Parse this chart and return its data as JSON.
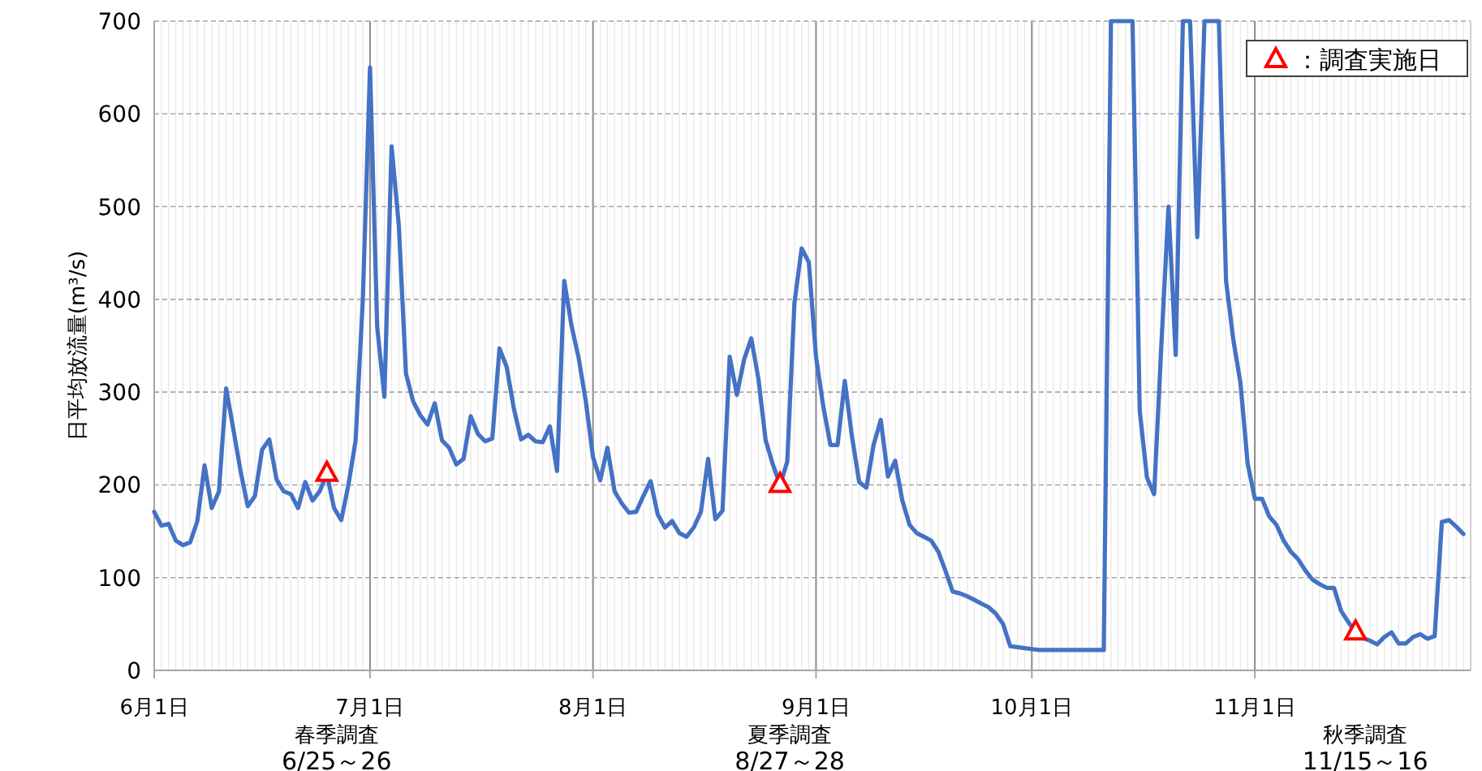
{
  "chart_data": {
    "type": "line",
    "ylabel": "日平均放流量(m³/s)",
    "x": [
      "--06-01",
      "--06-02",
      "--06-03",
      "--06-04",
      "--06-05",
      "--06-06",
      "--06-07",
      "--06-08",
      "--06-09",
      "--06-10",
      "--06-11",
      "--06-12",
      "--06-13",
      "--06-14",
      "--06-15",
      "--06-16",
      "--06-17",
      "--06-18",
      "--06-19",
      "--06-20",
      "--06-21",
      "--06-22",
      "--06-23",
      "--06-24",
      "--06-25",
      "--06-26",
      "--06-27",
      "--06-28",
      "--06-29",
      "--06-30",
      "--07-01",
      "--07-02",
      "--07-03",
      "--07-04",
      "--07-05",
      "--07-06",
      "--07-07",
      "--07-08",
      "--07-09",
      "--07-10",
      "--07-11",
      "--07-12",
      "--07-13",
      "--07-14",
      "--07-15",
      "--07-16",
      "--07-17",
      "--07-18",
      "--07-19",
      "--07-20",
      "--07-21",
      "--07-22",
      "--07-23",
      "--07-24",
      "--07-25",
      "--07-26",
      "--07-27",
      "--07-28",
      "--07-29",
      "--07-30",
      "--07-31",
      "--08-01",
      "--08-02",
      "--08-03",
      "--08-04",
      "--08-05",
      "--08-06",
      "--08-07",
      "--08-08",
      "--08-09",
      "--08-10",
      "--08-11",
      "--08-12",
      "--08-13",
      "--08-14",
      "--08-15",
      "--08-16",
      "--08-17",
      "--08-18",
      "--08-19",
      "--08-20",
      "--08-21",
      "--08-22",
      "--08-23",
      "--08-24",
      "--08-25",
      "--08-26",
      "--08-27",
      "--08-28",
      "--08-29",
      "--08-30",
      "--08-31",
      "--09-01",
      "--09-02",
      "--09-03",
      "--09-04",
      "--09-05",
      "--09-06",
      "--09-07",
      "--09-08",
      "--09-09",
      "--09-10",
      "--09-11",
      "--09-12",
      "--09-13",
      "--09-14",
      "--09-15",
      "--09-16",
      "--09-17",
      "--09-18",
      "--09-19",
      "--09-20",
      "--09-21",
      "--09-22",
      "--09-23",
      "--09-24",
      "--09-25",
      "--09-26",
      "--09-27",
      "--09-28",
      "--09-29",
      "--09-30",
      "--10-01",
      "--10-02",
      "--10-03",
      "--10-04",
      "--10-05",
      "--10-06",
      "--10-07",
      "--10-08",
      "--10-09",
      "--10-10",
      "--10-11",
      "--10-12",
      "--10-13",
      "--10-14",
      "--10-15",
      "--10-16",
      "--10-17",
      "--10-18",
      "--10-19",
      "--10-20",
      "--10-21",
      "--10-22",
      "--10-23",
      "--10-24",
      "--10-25",
      "--10-26",
      "--10-27",
      "--10-28",
      "--10-29",
      "--10-30",
      "--10-31",
      "--11-01",
      "--11-02",
      "--11-03",
      "--11-04",
      "--11-05",
      "--11-06",
      "--11-07",
      "--11-08",
      "--11-09",
      "--11-10",
      "--11-11",
      "--11-12",
      "--11-13",
      "--11-14",
      "--11-15",
      "--11-16",
      "--11-17",
      "--11-18",
      "--11-19",
      "--11-20",
      "--11-21",
      "--11-22",
      "--11-23",
      "--11-24",
      "--11-25",
      "--11-26",
      "--11-27",
      "--11-28",
      "--11-29",
      "--11-30"
    ],
    "series": [
      {
        "color": "#4472c4",
        "marker": "none",
        "values": [
          171,
          156,
          158,
          140,
          135,
          138,
          161,
          221,
          175,
          193,
          304,
          260,
          215,
          177,
          188,
          238,
          249,
          206,
          193,
          190,
          175,
          203,
          183,
          193,
          212,
          175,
          162,
          200,
          248,
          400,
          650,
          370,
          295,
          565,
          480,
          320,
          290,
          275,
          265,
          288,
          248,
          240,
          222,
          228,
          274,
          255,
          247,
          250,
          347,
          327,
          282,
          249,
          254,
          247,
          246,
          263,
          215,
          420,
          372,
          337,
          290,
          230,
          205,
          240,
          193,
          180,
          170,
          171,
          188,
          204,
          168,
          154,
          161,
          148,
          144,
          154,
          171,
          228,
          163,
          172,
          338,
          297,
          335,
          358,
          314,
          248,
          222,
          200,
          225,
          396,
          455,
          440,
          338,
          285,
          243,
          243,
          312,
          252,
          203,
          197,
          243,
          270,
          209,
          226,
          183,
          157,
          148,
          144,
          140,
          128,
          107,
          85,
          83,
          80,
          76,
          72,
          68,
          61,
          50,
          26,
          25,
          24,
          23,
          22,
          22,
          22,
          22,
          22,
          22,
          22,
          22,
          22,
          22,
          700,
          700,
          700,
          700,
          280,
          208,
          190,
          350,
          500,
          340,
          700,
          700,
          467,
          700,
          700,
          700,
          420,
          357,
          310,
          223,
          185,
          185,
          166,
          157,
          140,
          128,
          120,
          108,
          98,
          93,
          89,
          89,
          64,
          52,
          41,
          35,
          32,
          28,
          36,
          41,
          29,
          29,
          36,
          39,
          34,
          37,
          160,
          162,
          155,
          147
        ]
      },
      {
        "type": "scatter",
        "name": "：調査実施日",
        "color": "#ff0000",
        "marker": "triangle",
        "x": [
          "--06-25",
          "--08-27",
          "--11-15"
        ],
        "values": [
          212,
          200,
          41
        ]
      }
    ],
    "xlim": [
      "--06-01",
      "--12-01"
    ],
    "xticks": [
      {
        "value": "--06-01",
        "label": "6月1日"
      },
      {
        "value": "--07-01",
        "label": "7月1日"
      },
      {
        "value": "--08-01",
        "label": "8月1日"
      },
      {
        "value": "--09-01",
        "label": "9月1日"
      },
      {
        "value": "--10-01",
        "label": "10月1日"
      },
      {
        "value": "--11-01",
        "label": "11月1日"
      }
    ],
    "ylim": [
      0,
      700
    ],
    "yticks": [
      0,
      100,
      200,
      300,
      400,
      500,
      600,
      700
    ],
    "grid": true,
    "legend": "top right",
    "annotations": [
      "春季調査\n6/25～26",
      "夏季調査\n8/27～28",
      "秋季調査\n11/15～16"
    ]
  }
}
